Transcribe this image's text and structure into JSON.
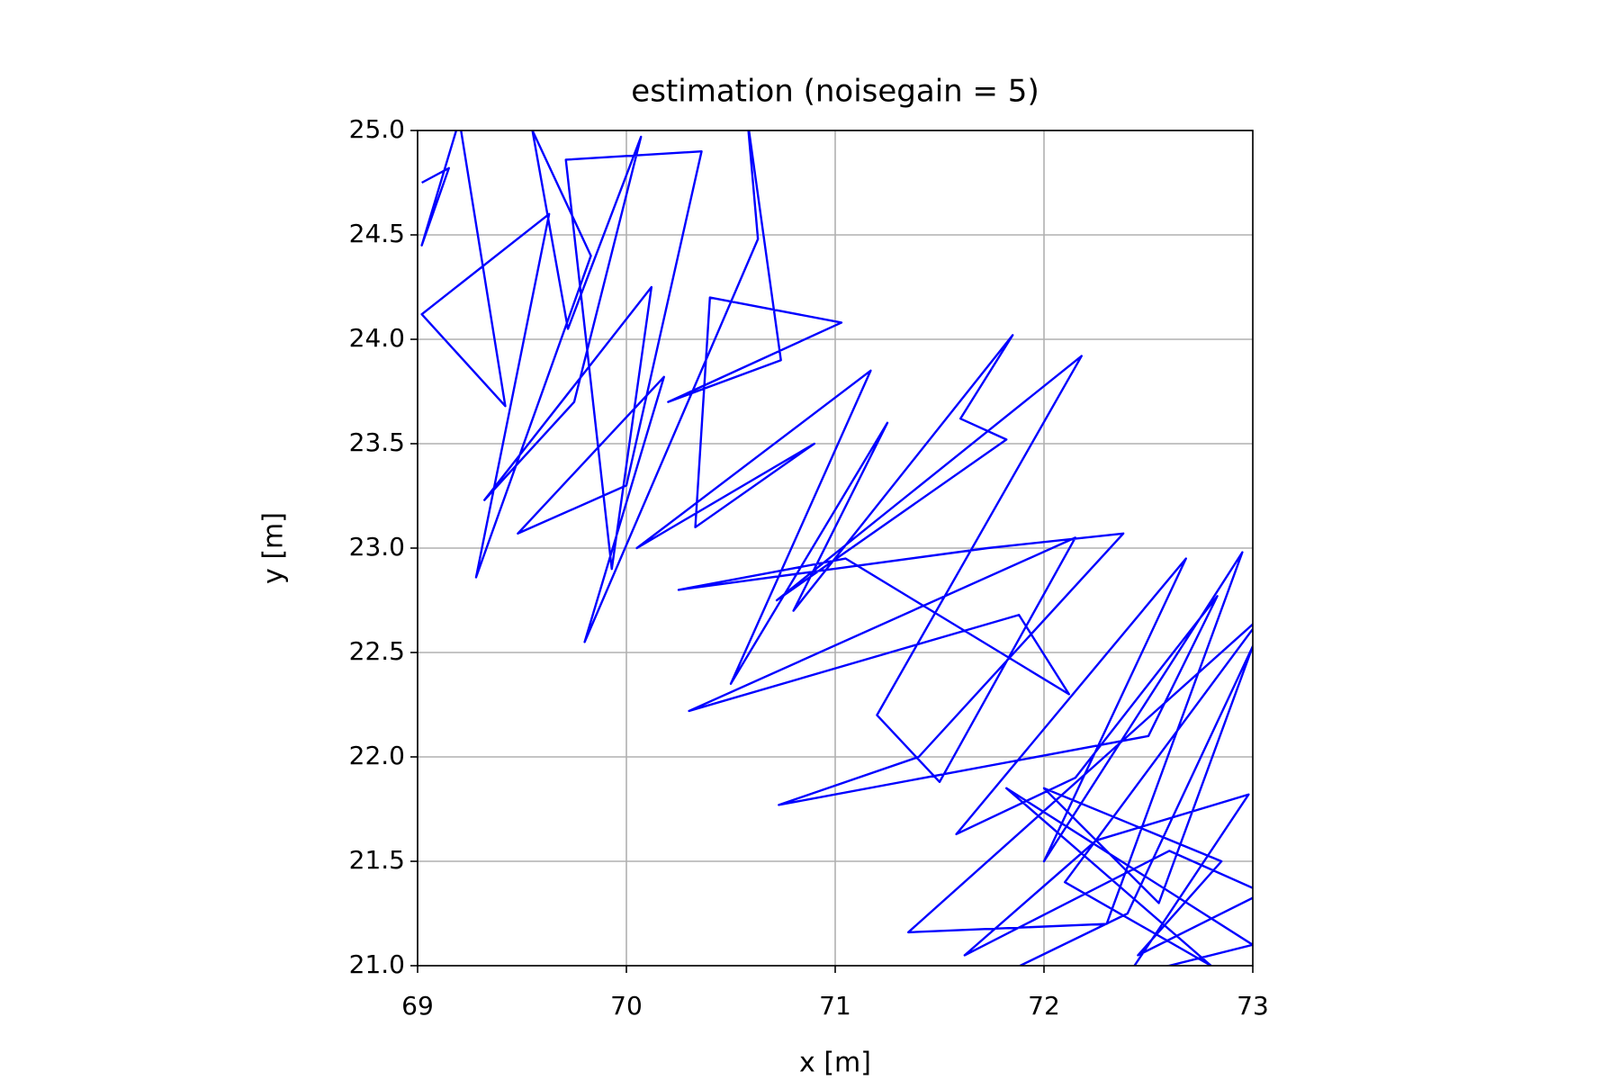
{
  "chart_data": {
    "type": "line",
    "title": "estimation (noisegain = 5)",
    "xlabel": "x [m]",
    "ylabel": "y [m]",
    "x": [
      69.02,
      69.15,
      69.02,
      69.2,
      69.42,
      69.02,
      69.63,
      69.28,
      69.83,
      69.55,
      69.72,
      70.07,
      69.75,
      69.32,
      70.12,
      69.93,
      69.71,
      70.36,
      70.0,
      69.48,
      70.18,
      69.8,
      70.63,
      70.58,
      70.74,
      70.2,
      71.03,
      70.4,
      70.33,
      70.9,
      70.05,
      71.17,
      70.5,
      71.25,
      70.8,
      71.85,
      71.6,
      71.82,
      70.72,
      72.18,
      71.2,
      71.5,
      72.15,
      70.3,
      71.88,
      72.12,
      71.05,
      70.25,
      71.73,
      72.38,
      71.4,
      70.73,
      72.5,
      72.83,
      72.15,
      71.58,
      72.68,
      72.0,
      72.95,
      72.3,
      71.35,
      73.05,
      72.1,
      72.8,
      71.82,
      73.0,
      72.4,
      72.98,
      72.25,
      71.62,
      72.6,
      73.05,
      72.45,
      72.85,
      72.0,
      72.55,
      73.0,
      72.4,
      71.68
    ],
    "values": [
      24.75,
      24.82,
      24.45,
      25.05,
      23.68,
      24.12,
      24.6,
      22.86,
      24.4,
      25.0,
      24.05,
      24.97,
      23.7,
      23.23,
      24.25,
      22.9,
      24.86,
      24.9,
      23.3,
      23.07,
      23.82,
      22.55,
      24.48,
      25.05,
      23.9,
      23.7,
      24.08,
      24.2,
      23.1,
      23.5,
      23.0,
      23.85,
      22.35,
      23.6,
      22.7,
      24.02,
      23.62,
      23.52,
      22.75,
      23.92,
      22.2,
      21.88,
      23.05,
      22.22,
      22.68,
      22.3,
      22.95,
      22.8,
      23.0,
      23.07,
      22.0,
      21.77,
      22.1,
      22.77,
      21.9,
      21.63,
      22.95,
      21.5,
      22.98,
      21.2,
      21.16,
      22.68,
      21.4,
      21.0,
      21.85,
      21.1,
      20.95,
      21.82,
      21.6,
      21.05,
      21.55,
      21.35,
      21.05,
      21.5,
      21.85,
      21.3,
      22.53,
      21.25,
      20.9
    ],
    "color": "#0000ff",
    "xlim": [
      69,
      73
    ],
    "xticks": [
      69,
      70,
      71,
      72,
      73
    ],
    "ylim": [
      21,
      25
    ],
    "yticks": [
      {
        "value": 21,
        "label": "21.0"
      },
      21.5,
      {
        "value": 22,
        "label": "22.0"
      },
      22.5,
      {
        "value": 23,
        "label": "23.0"
      },
      23.5,
      {
        "value": 24,
        "label": "24.0"
      },
      24.5,
      {
        "value": 25,
        "label": "25.0"
      }
    ],
    "grid": true
  }
}
